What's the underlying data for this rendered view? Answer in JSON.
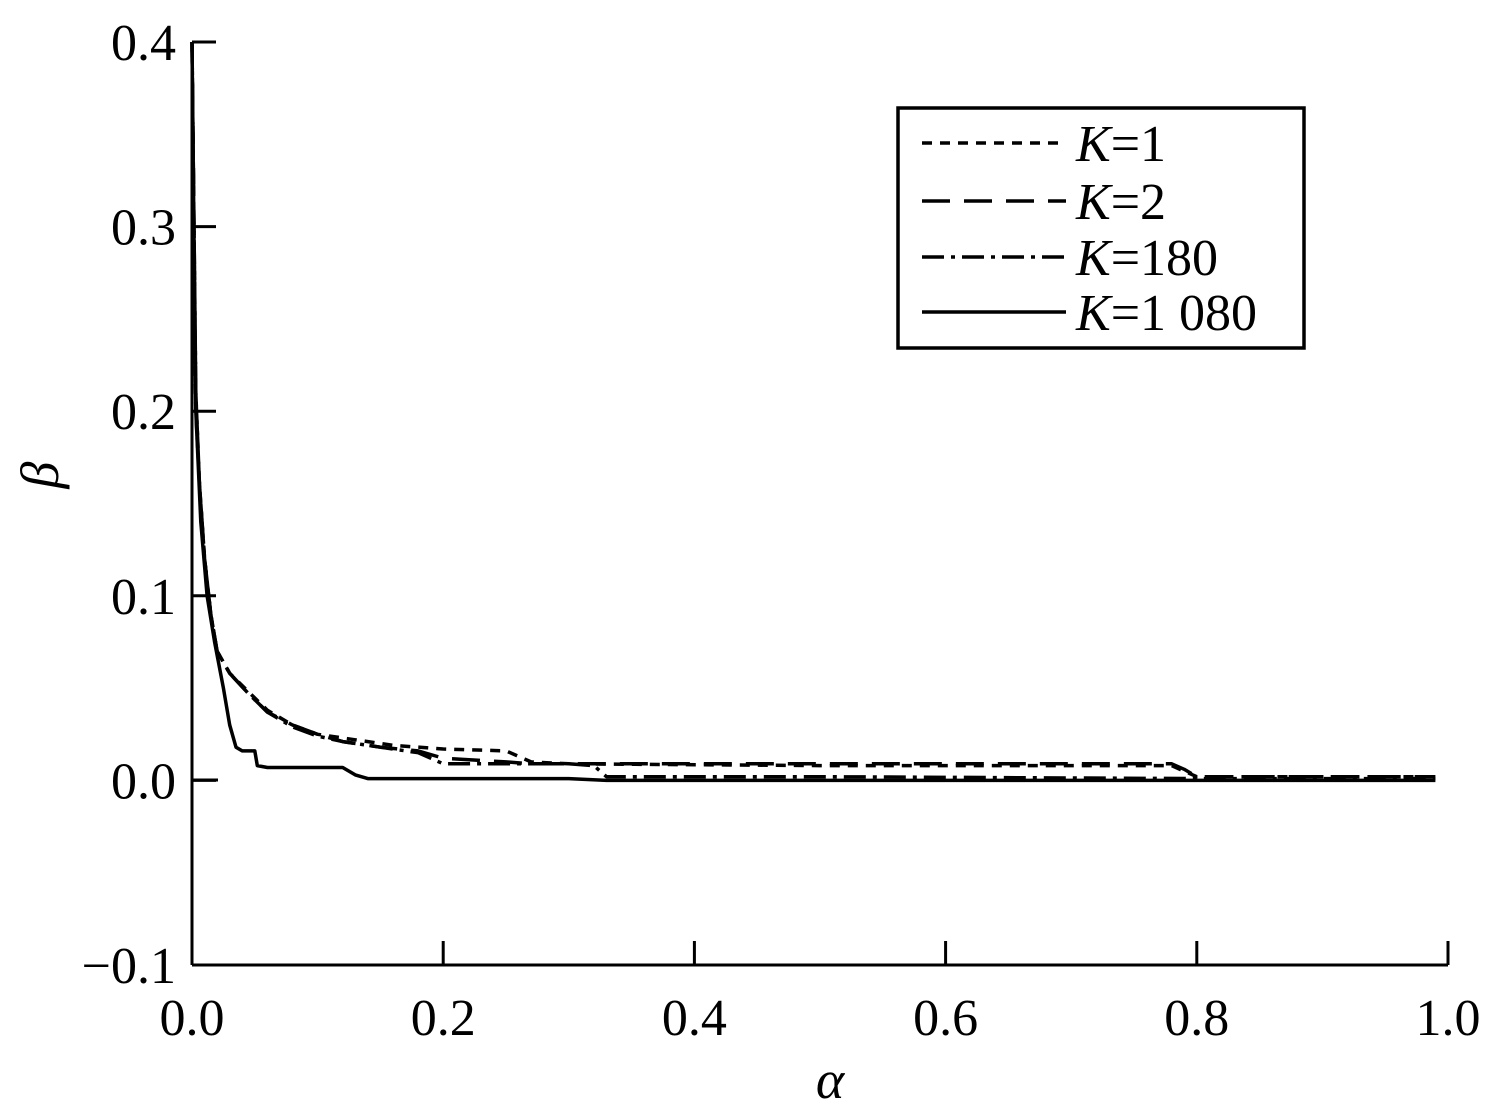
{
  "chart_data": {
    "type": "line",
    "xlabel": "α",
    "ylabel": "β",
    "xlim": [
      0.0,
      1.0
    ],
    "ylim": [
      -0.1,
      0.4
    ],
    "xticks": [
      0.0,
      0.2,
      0.4,
      0.6,
      0.8,
      1.0
    ],
    "xtick_labels": [
      "0.0",
      "0.2",
      "0.4",
      "0.6",
      "0.8",
      "1.0"
    ],
    "yticks": [
      -0.1,
      0.0,
      0.1,
      0.2,
      0.3,
      0.4
    ],
    "ytick_labels": [
      "−0.1",
      "0.0",
      "0.1",
      "0.2",
      "0.3",
      "0.4"
    ],
    "grid": false,
    "legend_position": "top-right",
    "series": [
      {
        "name": "K=1",
        "legend_k": "K",
        "legend_rest": "=1",
        "dash": "10,8",
        "x": [
          0.0,
          0.003,
          0.006,
          0.01,
          0.015,
          0.02,
          0.03,
          0.045,
          0.06,
          0.08,
          0.1,
          0.13,
          0.16,
          0.2,
          0.25,
          0.26,
          0.27,
          0.3,
          0.5,
          0.78,
          0.79,
          0.8,
          0.99
        ],
        "y": [
          0.4,
          0.2,
          0.16,
          0.12,
          0.09,
          0.07,
          0.058,
          0.048,
          0.038,
          0.03,
          0.025,
          0.022,
          0.019,
          0.017,
          0.016,
          0.013,
          0.01,
          0.009,
          0.008,
          0.008,
          0.005,
          0.002,
          0.002
        ]
      },
      {
        "name": "K=2",
        "legend_k": "K",
        "legend_rest": "=2",
        "dash": "28,14",
        "x": [
          0.0,
          0.003,
          0.006,
          0.01,
          0.015,
          0.02,
          0.03,
          0.045,
          0.06,
          0.08,
          0.1,
          0.12,
          0.15,
          0.18,
          0.2,
          0.25,
          0.27,
          0.3,
          0.5,
          0.78,
          0.79,
          0.8,
          0.99
        ],
        "y": [
          0.4,
          0.21,
          0.16,
          0.12,
          0.09,
          0.07,
          0.058,
          0.047,
          0.037,
          0.03,
          0.025,
          0.021,
          0.018,
          0.016,
          0.012,
          0.01,
          0.009,
          0.009,
          0.009,
          0.009,
          0.006,
          0.002,
          0.002
        ]
      },
      {
        "name": "K=180",
        "legend_k": "K",
        "legend_rest": "=180",
        "dash": "22,7,4,7",
        "x": [
          0.0,
          0.003,
          0.006,
          0.01,
          0.015,
          0.02,
          0.03,
          0.045,
          0.06,
          0.08,
          0.1,
          0.12,
          0.15,
          0.18,
          0.19,
          0.2,
          0.3,
          0.32,
          0.33,
          0.5,
          0.8,
          0.99
        ],
        "y": [
          0.4,
          0.21,
          0.16,
          0.12,
          0.09,
          0.07,
          0.058,
          0.047,
          0.037,
          0.029,
          0.024,
          0.021,
          0.018,
          0.015,
          0.012,
          0.009,
          0.009,
          0.008,
          0.002,
          0.002,
          0.001,
          0.001
        ]
      },
      {
        "name": "K=1 080",
        "legend_k": "K",
        "legend_rest": "=1 080",
        "dash": "",
        "x": [
          0.0,
          0.003,
          0.007,
          0.012,
          0.018,
          0.025,
          0.03,
          0.035,
          0.04,
          0.045,
          0.05,
          0.052,
          0.06,
          0.1,
          0.12,
          0.13,
          0.14,
          0.2,
          0.3,
          0.33,
          0.5,
          0.8,
          0.99
        ],
        "y": [
          0.4,
          0.2,
          0.14,
          0.1,
          0.075,
          0.05,
          0.03,
          0.018,
          0.016,
          0.016,
          0.016,
          0.008,
          0.007,
          0.007,
          0.007,
          0.003,
          0.001,
          0.001,
          0.001,
          0.0,
          0.0,
          0.0,
          0.0
        ]
      }
    ]
  }
}
